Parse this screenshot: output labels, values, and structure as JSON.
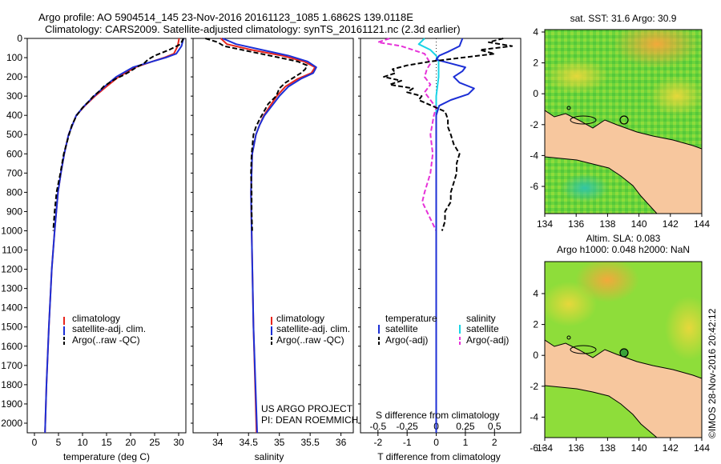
{
  "header": {
    "line1": "Argo profile: AO 5904514_145 23-Nov-2016 20161123_1085 1.6862S 139.0118E",
    "line2": "Climatology: CARS2009. Satellite-adjusted climatology: synTS_20161121.nc (2.3d earlier)"
  },
  "colors": {
    "climatology": "#e8261d",
    "satellite": "#1c2fd6",
    "argo": "#000000",
    "salinity_satellite": "#19d4e6",
    "salinity_argo": "#e632d8",
    "land": "#f7c79e"
  },
  "depth_axis": {
    "ylim": [
      2050,
      0
    ],
    "ticks": [
      "0",
      "100",
      "200",
      "300",
      "400",
      "500",
      "600",
      "700",
      "800",
      "900",
      "1000",
      "1100",
      "1200",
      "1300",
      "1400",
      "1500",
      "1600",
      "1700",
      "1800",
      "1900",
      "2000"
    ]
  },
  "chart_data": [
    {
      "type": "line",
      "xlabel": "temperature (deg C)",
      "ylabel": "",
      "xlim": [
        -1.5,
        31.5
      ],
      "xticks": [
        "0",
        "5",
        "10",
        "15",
        "20",
        "25",
        "30"
      ],
      "x_tick_values": [
        0,
        5,
        10,
        15,
        20,
        25,
        30
      ],
      "legend": {
        "placement": "bottom-left",
        "entries": [
          "climatology",
          "satellite-adj. clim.",
          "Argo(..raw -QC)"
        ]
      },
      "series": [
        {
          "name": "climatology",
          "depth": [
            0,
            40,
            80,
            100,
            120,
            150,
            200,
            250,
            300,
            350,
            400,
            500,
            600,
            700,
            800,
            1000,
            1200,
            1500,
            1800,
            2050
          ],
          "values": [
            30.1,
            29.8,
            29.0,
            27.0,
            24.5,
            21.0,
            17.5,
            15.0,
            12.6,
            10.5,
            8.7,
            7.1,
            6.2,
            5.5,
            4.9,
            4.2,
            3.6,
            3.0,
            2.5,
            2.2
          ]
        },
        {
          "name": "satellite-adj. clim.",
          "depth": [
            0,
            40,
            80,
            100,
            120,
            150,
            200,
            250,
            300,
            350,
            400,
            500,
            600,
            700,
            800,
            1000,
            1200,
            1500,
            1800,
            2050
          ],
          "values": [
            31.0,
            30.6,
            29.5,
            27.3,
            24.5,
            20.5,
            17.0,
            14.6,
            12.4,
            10.4,
            8.7,
            7.1,
            6.2,
            5.5,
            4.9,
            4.2,
            3.6,
            3.0,
            2.5,
            2.2
          ]
        },
        {
          "name": "Argo(..raw -QC)",
          "depth": [
            0,
            30,
            60,
            90,
            110,
            130,
            150,
            170,
            190,
            210,
            230,
            250,
            270,
            300,
            330,
            360,
            400,
            450,
            500,
            600,
            700,
            800,
            900,
            1000
          ],
          "values": [
            31.0,
            30.4,
            28.0,
            25.0,
            23.6,
            22.8,
            21.2,
            20.0,
            18.6,
            16.9,
            15.6,
            14.4,
            13.7,
            12.3,
            11.2,
            10.0,
            8.8,
            7.8,
            7.2,
            6.1,
            5.4,
            4.6,
            4.2,
            3.9
          ]
        }
      ]
    },
    {
      "type": "line",
      "xlabel": "salinity",
      "ylabel": "",
      "xlim": [
        33.6,
        36.2
      ],
      "xticks": [
        "34",
        "34.5",
        "35",
        "35.5",
        "36"
      ],
      "x_tick_values": [
        34,
        34.5,
        35,
        35.5,
        36
      ],
      "legend": {
        "placement": "bottom-left",
        "entries": [
          "climatology",
          "satellite-adj. clim.",
          "Argo(..raw -QC)"
        ]
      },
      "annotations": [
        "US ARGO PROJECT",
        "PI: DEAN ROEMMICH"
      ],
      "series": [
        {
          "name": "climatology",
          "depth": [
            0,
            30,
            60,
            90,
            120,
            150,
            180,
            210,
            250,
            300,
            350,
            400,
            450,
            500,
            600,
            800,
            1000,
            1500,
            2050
          ],
          "values": [
            34.05,
            34.15,
            34.55,
            35.05,
            35.4,
            35.58,
            35.52,
            35.3,
            35.1,
            34.96,
            34.85,
            34.75,
            34.68,
            34.62,
            34.56,
            34.54,
            34.55,
            34.58,
            34.63
          ]
        },
        {
          "name": "satellite-adj. clim.",
          "depth": [
            0,
            30,
            60,
            90,
            120,
            150,
            180,
            210,
            250,
            300,
            350,
            400,
            450,
            500,
            600,
            800,
            1000,
            1500,
            2050
          ],
          "values": [
            34.08,
            34.3,
            34.72,
            35.15,
            35.46,
            35.6,
            35.55,
            35.35,
            35.15,
            35.0,
            34.88,
            34.76,
            34.68,
            34.62,
            34.56,
            34.54,
            34.55,
            34.58,
            34.64
          ]
        },
        {
          "name": "Argo(..raw -QC)",
          "depth": [
            0,
            20,
            40,
            60,
            80,
            100,
            120,
            140,
            160,
            180,
            200,
            230,
            260,
            300,
            340,
            380,
            420,
            460,
            500,
            600,
            700,
            800,
            900,
            1000
          ],
          "values": [
            33.8,
            34.0,
            34.1,
            34.4,
            34.7,
            35.0,
            35.3,
            35.45,
            35.42,
            35.35,
            35.25,
            35.1,
            35.0,
            34.95,
            34.82,
            34.75,
            34.68,
            34.62,
            34.58,
            34.55,
            34.54,
            34.55,
            34.55,
            34.56
          ]
        }
      ]
    },
    {
      "type": "line",
      "xlabel": "T difference from climatology",
      "xlabel_top": "S difference from climatology",
      "xlim_T": [
        -2.6,
        2.9
      ],
      "xticks_T": [
        "-2",
        "-1",
        "0",
        "1",
        "2"
      ],
      "x_tick_values_T": [
        -2,
        -1,
        0,
        1,
        2
      ],
      "xlim_S": [
        -0.65,
        0.725
      ],
      "xticks_S": [
        "-0.5",
        "-0.25",
        "0",
        "0.25",
        "0.5"
      ],
      "x_tick_values_S": [
        -0.5,
        -0.25,
        0,
        0.25,
        0.5
      ],
      "legend": {
        "placement": "bottom",
        "temperature_title": "temperature",
        "salinity_title": "salinity",
        "temperature_entries": [
          "satellite",
          "Argo(-adj)"
        ],
        "salinity_entries": [
          "satellite",
          "Argo(-adj)"
        ]
      },
      "series": [
        {
          "name": "temperature satellite",
          "axis": "T",
          "depth": [
            0,
            40,
            70,
            90,
            110,
            130,
            150,
            170,
            200,
            230,
            260,
            290,
            320,
            350,
            400,
            500,
            700,
            1000,
            1500,
            2050
          ],
          "values": [
            0.9,
            0.8,
            0.4,
            0.1,
            0.0,
            0.5,
            1.0,
            0.9,
            0.6,
            0.8,
            1.3,
            1.1,
            0.5,
            0.1,
            0.0,
            0.0,
            0.0,
            0.0,
            0.0,
            0.0
          ]
        },
        {
          "name": "temperature Argo(-adj)",
          "axis": "T",
          "depth": [
            0,
            20,
            40,
            60,
            80,
            100,
            120,
            140,
            160,
            180,
            200,
            220,
            240,
            260,
            280,
            300,
            320,
            340,
            380,
            420,
            460,
            500,
            550,
            600,
            650,
            700,
            750,
            800,
            850,
            900,
            950,
            1000
          ],
          "values": [
            2.3,
            1.8,
            2.6,
            1.5,
            2.0,
            0.9,
            -0.2,
            -1.0,
            -1.5,
            -1.4,
            -1.8,
            -1.2,
            -1.6,
            -0.8,
            -1.0,
            -0.5,
            -0.6,
            -0.3,
            0.3,
            0.4,
            0.4,
            0.5,
            0.6,
            0.8,
            0.7,
            0.7,
            0.6,
            0.5,
            0.5,
            0.3,
            0.3,
            0.2
          ]
        },
        {
          "name": "salinity satellite",
          "axis": "S",
          "depth": [
            0,
            30,
            60,
            90,
            120,
            150,
            200,
            300,
            400,
            500,
            700,
            1000,
            1500,
            2050
          ],
          "values": [
            -0.1,
            -0.15,
            -0.05,
            0.0,
            0.02,
            0.02,
            0.02,
            0.0,
            0.0,
            0.0,
            0.0,
            0.0,
            0.0,
            0.0
          ]
        },
        {
          "name": "salinity Argo(-adj)",
          "axis": "S",
          "depth": [
            0,
            20,
            40,
            60,
            80,
            100,
            130,
            160,
            200,
            240,
            280,
            320,
            360,
            400,
            500,
            600,
            700,
            800,
            850,
            900,
            1000
          ],
          "values": [
            -0.4,
            -0.5,
            -0.3,
            -0.2,
            -0.1,
            -0.08,
            -0.05,
            -0.08,
            -0.1,
            -0.05,
            -0.1,
            -0.05,
            0.0,
            -0.02,
            -0.05,
            -0.03,
            -0.05,
            -0.1,
            -0.12,
            -0.08,
            0.0
          ]
        }
      ]
    }
  ],
  "maps": {
    "x_ticks": [
      "134",
      "136",
      "138",
      "140",
      "142",
      "144"
    ],
    "y_ticks": [
      "4",
      "2",
      "0",
      "-2",
      "-4",
      "-6"
    ],
    "top": {
      "title": "sat. SST: 31.6  Argo: 30.9"
    },
    "bottom": {
      "title_line1": "Altim. SLA: 0.083",
      "title_line2": "Argo h1000: 0.048 h2000: NaN"
    },
    "profile_location": {
      "lon": 139.0118,
      "lat": -1.6862
    }
  },
  "footer": {
    "stamp": "©IMOS 28-Nov-2016 20:42:12"
  }
}
